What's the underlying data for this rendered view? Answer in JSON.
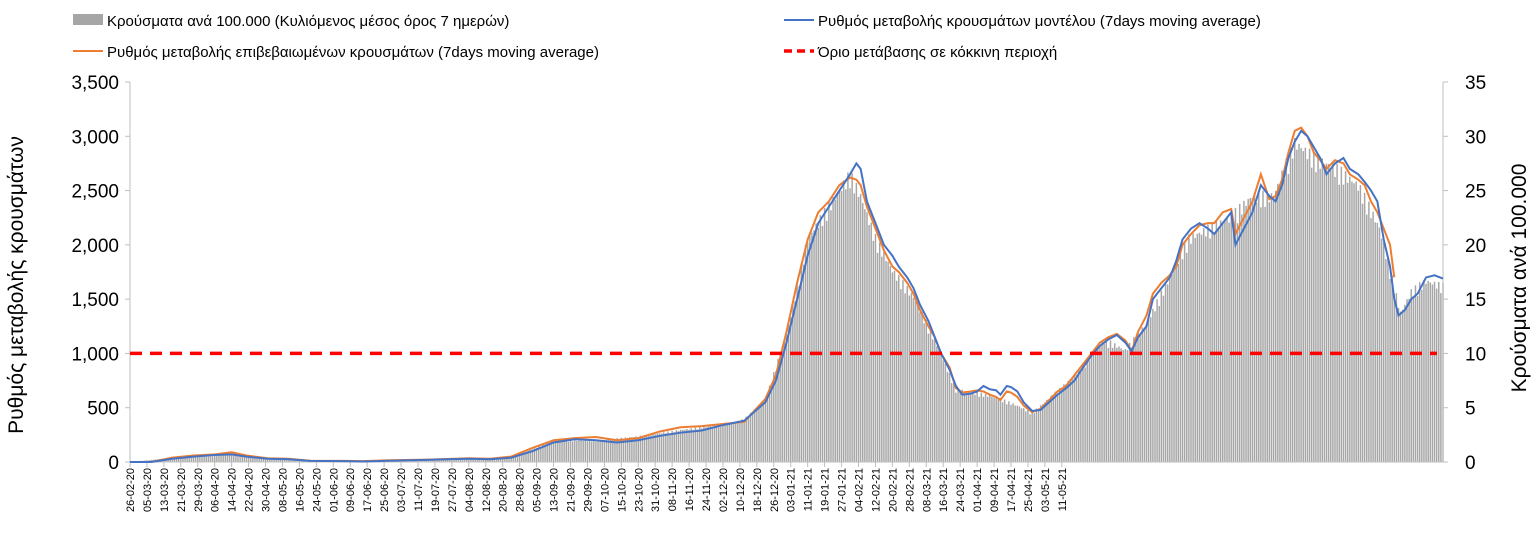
{
  "chart_data": {
    "type": "line",
    "legend": {
      "placement": "top",
      "items": [
        {
          "key": "cases",
          "label": "Κρούσματα ανά 100.000 (Κυλιόμενος μέσος όρος 7 ημερών)",
          "color": "#a6a6a6",
          "marker": "bar"
        },
        {
          "key": "model",
          "label": "Ρυθμός μεταβολής κρουσμάτων μοντέλου (7days moving average)",
          "color": "#4472c4",
          "marker": "line"
        },
        {
          "key": "confirmed",
          "label": "Ρυθμός μεταβολής επιβεβαιωμένων κρουσμάτων (7days moving average)",
          "color": "#ed7d31",
          "marker": "line"
        },
        {
          "key": "threshold",
          "label": "Όριο μετάβασης σε κόκκινη περιοχή",
          "color": "#ff0000",
          "marker": "dashed"
        }
      ]
    },
    "y_left": {
      "label": "Ρυθμός μεταβολής κρουσμάτων",
      "min": 0,
      "max": 3500,
      "ticks": [
        "0",
        "500",
        "1,000",
        "1,500",
        "2,000",
        "2,500",
        "3,000",
        "3,500"
      ]
    },
    "y_right": {
      "label": "Κρούσματα ανά 100.000",
      "min": 0,
      "max": 35,
      "ticks": [
        "0",
        "5",
        "10",
        "15",
        "20",
        "25",
        "30",
        "35"
      ]
    },
    "x_tick_labels": [
      "26-02-20",
      "05-03-20",
      "13-03-20",
      "21-03-20",
      "29-03-20",
      "06-04-20",
      "14-04-20",
      "22-04-20",
      "30-04-20",
      "08-05-20",
      "16-05-20",
      "24-05-20",
      "01-06-20",
      "09-06-20",
      "17-06-20",
      "25-06-20",
      "03-07-20",
      "11-07-20",
      "19-07-20",
      "27-07-20",
      "04-08-20",
      "12-08-20",
      "20-08-20",
      "28-08-20",
      "05-09-20",
      "13-09-20",
      "21-09-20",
      "29-09-20",
      "07-10-20",
      "15-10-20",
      "23-10-20",
      "31-10-20",
      "08-11-20",
      "16-11-20",
      "24-11-20",
      "02-12-20",
      "10-12-20",
      "18-12-20",
      "26-12-20",
      "03-01-21",
      "11-01-21",
      "19-01-21",
      "27-01-21",
      "04-02-21",
      "12-02-21",
      "20-02-21",
      "28-02-21",
      "08-03-21",
      "16-03-21",
      "24-03-21",
      "01-04-21",
      "09-04-21",
      "17-04-21",
      "25-04-21",
      "03-05-21",
      "11-05-21"
    ],
    "threshold": {
      "y_left": 1000,
      "y_right": 10
    },
    "grid": false,
    "series_points": {
      "note_units": "x is days since 26-02-20",
      "model": [
        [
          0,
          0
        ],
        [
          10,
          0
        ],
        [
          20,
          30
        ],
        [
          30,
          50
        ],
        [
          40,
          65
        ],
        [
          48,
          70
        ],
        [
          55,
          50
        ],
        [
          65,
          30
        ],
        [
          75,
          25
        ],
        [
          85,
          10
        ],
        [
          100,
          8
        ],
        [
          110,
          5
        ],
        [
          120,
          10
        ],
        [
          130,
          15
        ],
        [
          140,
          20
        ],
        [
          150,
          25
        ],
        [
          160,
          30
        ],
        [
          170,
          25
        ],
        [
          180,
          40
        ],
        [
          190,
          100
        ],
        [
          200,
          180
        ],
        [
          210,
          210
        ],
        [
          220,
          200
        ],
        [
          230,
          180
        ],
        [
          240,
          200
        ],
        [
          250,
          240
        ],
        [
          260,
          270
        ],
        [
          270,
          290
        ],
        [
          280,
          340
        ],
        [
          290,
          380
        ],
        [
          300,
          550
        ],
        [
          305,
          750
        ],
        [
          310,
          1100
        ],
        [
          315,
          1500
        ],
        [
          320,
          1900
        ],
        [
          325,
          2200
        ],
        [
          330,
          2350
        ],
        [
          335,
          2500
        ],
        [
          340,
          2650
        ],
        [
          343,
          2750
        ],
        [
          345,
          2700
        ],
        [
          348,
          2400
        ],
        [
          352,
          2200
        ],
        [
          356,
          2000
        ],
        [
          360,
          1900
        ],
        [
          363,
          1800
        ],
        [
          367,
          1700
        ],
        [
          370,
          1600
        ],
        [
          373,
          1450
        ],
        [
          377,
          1300
        ],
        [
          380,
          1150
        ],
        [
          383,
          1000
        ],
        [
          387,
          850
        ],
        [
          390,
          700
        ],
        [
          393,
          620
        ],
        [
          397,
          630
        ],
        [
          400,
          650
        ],
        [
          403,
          700
        ],
        [
          406,
          670
        ],
        [
          409,
          660
        ],
        [
          411,
          620
        ],
        [
          414,
          700
        ],
        [
          416,
          690
        ],
        [
          419,
          650
        ],
        [
          422,
          550
        ],
        [
          426,
          470
        ],
        [
          430,
          480
        ],
        [
          434,
          550
        ],
        [
          438,
          620
        ],
        [
          442,
          680
        ],
        [
          446,
          750
        ],
        [
          450,
          870
        ],
        [
          454,
          980
        ],
        [
          458,
          1070
        ],
        [
          462,
          1130
        ],
        [
          466,
          1170
        ],
        [
          470,
          1100
        ],
        [
          473,
          1020
        ],
        [
          476,
          1150
        ],
        [
          480,
          1250
        ],
        [
          483,
          1500
        ],
        [
          487,
          1600
        ],
        [
          491,
          1700
        ],
        [
          494,
          1850
        ],
        [
          497,
          2050
        ],
        [
          501,
          2150
        ],
        [
          505,
          2200
        ],
        [
          509,
          2150
        ],
        [
          512,
          2100
        ],
        [
          516,
          2200
        ],
        [
          520,
          2300
        ],
        [
          522,
          2000
        ],
        [
          526,
          2150
        ],
        [
          530,
          2300
        ],
        [
          534,
          2550
        ],
        [
          538,
          2450
        ],
        [
          541,
          2400
        ],
        [
          544,
          2550
        ],
        [
          547,
          2800
        ],
        [
          550,
          2950
        ],
        [
          553,
          3050
        ],
        [
          556,
          3000
        ],
        [
          559,
          2900
        ],
        [
          562,
          2800
        ],
        [
          565,
          2650
        ],
        [
          569,
          2750
        ],
        [
          573,
          2800
        ],
        [
          576,
          2700
        ],
        [
          580,
          2650
        ],
        [
          583,
          2580
        ],
        [
          586,
          2500
        ],
        [
          589,
          2400
        ],
        [
          592,
          2050
        ],
        [
          595,
          1800
        ],
        [
          597,
          1500
        ],
        [
          599,
          1350
        ],
        [
          602,
          1400
        ],
        [
          605,
          1500
        ],
        [
          608,
          1550
        ],
        [
          612,
          1700
        ],
        [
          616,
          1720
        ],
        [
          620,
          1690
        ]
      ],
      "confirmed": [
        [
          0,
          0
        ],
        [
          10,
          0
        ],
        [
          20,
          40
        ],
        [
          30,
          60
        ],
        [
          40,
          70
        ],
        [
          48,
          90
        ],
        [
          55,
          60
        ],
        [
          65,
          35
        ],
        [
          75,
          30
        ],
        [
          85,
          12
        ],
        [
          100,
          10
        ],
        [
          110,
          8
        ],
        [
          120,
          15
        ],
        [
          130,
          18
        ],
        [
          140,
          22
        ],
        [
          150,
          28
        ],
        [
          160,
          35
        ],
        [
          170,
          30
        ],
        [
          180,
          50
        ],
        [
          190,
          130
        ],
        [
          200,
          200
        ],
        [
          210,
          220
        ],
        [
          220,
          230
        ],
        [
          230,
          200
        ],
        [
          240,
          220
        ],
        [
          250,
          280
        ],
        [
          260,
          320
        ],
        [
          270,
          330
        ],
        [
          280,
          350
        ],
        [
          290,
          370
        ],
        [
          300,
          580
        ],
        [
          305,
          800
        ],
        [
          310,
          1200
        ],
        [
          315,
          1650
        ],
        [
          320,
          2050
        ],
        [
          325,
          2300
        ],
        [
          330,
          2400
        ],
        [
          335,
          2550
        ],
        [
          340,
          2620
        ],
        [
          343,
          2600
        ],
        [
          345,
          2550
        ],
        [
          348,
          2350
        ],
        [
          352,
          2150
        ],
        [
          356,
          1950
        ],
        [
          360,
          1800
        ],
        [
          363,
          1750
        ],
        [
          367,
          1650
        ],
        [
          370,
          1550
        ],
        [
          373,
          1400
        ],
        [
          377,
          1250
        ],
        [
          380,
          1150
        ],
        [
          383,
          1000
        ],
        [
          387,
          870
        ],
        [
          390,
          680
        ],
        [
          393,
          640
        ],
        [
          397,
          650
        ],
        [
          400,
          660
        ],
        [
          403,
          650
        ],
        [
          406,
          620
        ],
        [
          409,
          600
        ],
        [
          411,
          570
        ],
        [
          414,
          650
        ],
        [
          416,
          640
        ],
        [
          419,
          600
        ],
        [
          422,
          520
        ],
        [
          426,
          460
        ],
        [
          430,
          490
        ],
        [
          434,
          570
        ],
        [
          438,
          650
        ],
        [
          442,
          700
        ],
        [
          446,
          800
        ],
        [
          450,
          900
        ],
        [
          454,
          1000
        ],
        [
          458,
          1100
        ],
        [
          462,
          1150
        ],
        [
          466,
          1180
        ],
        [
          470,
          1120
        ],
        [
          473,
          1020
        ],
        [
          476,
          1200
        ],
        [
          480,
          1350
        ],
        [
          483,
          1550
        ],
        [
          487,
          1650
        ],
        [
          491,
          1720
        ],
        [
          494,
          1800
        ],
        [
          497,
          2000
        ],
        [
          501,
          2100
        ],
        [
          505,
          2180
        ],
        [
          509,
          2200
        ],
        [
          512,
          2200
        ],
        [
          516,
          2300
        ],
        [
          520,
          2330
        ],
        [
          522,
          2100
        ],
        [
          526,
          2250
        ],
        [
          530,
          2400
        ],
        [
          534,
          2650
        ],
        [
          538,
          2420
        ],
        [
          541,
          2450
        ],
        [
          544,
          2600
        ],
        [
          547,
          2850
        ],
        [
          550,
          3050
        ],
        [
          553,
          3080
        ],
        [
          556,
          3000
        ],
        [
          559,
          2850
        ],
        [
          562,
          2780
        ],
        [
          565,
          2700
        ],
        [
          569,
          2780
        ],
        [
          573,
          2750
        ],
        [
          576,
          2650
        ],
        [
          580,
          2600
        ],
        [
          583,
          2550
        ],
        [
          586,
          2400
        ],
        [
          589,
          2300
        ],
        [
          592,
          2150
        ],
        [
          595,
          2000
        ],
        [
          597,
          1700
        ]
      ],
      "cases_bars_right_axis": [
        [
          0,
          0
        ],
        [
          20,
          0.4
        ],
        [
          40,
          0.7
        ],
        [
          48,
          0.8
        ],
        [
          55,
          0.5
        ],
        [
          70,
          0.2
        ],
        [
          100,
          0.1
        ],
        [
          150,
          0.3
        ],
        [
          180,
          0.4
        ],
        [
          200,
          2
        ],
        [
          220,
          2
        ],
        [
          240,
          2.4
        ],
        [
          260,
          3
        ],
        [
          280,
          3.5
        ],
        [
          290,
          4
        ],
        [
          300,
          5.8
        ],
        [
          310,
          12
        ],
        [
          320,
          21
        ],
        [
          330,
          24
        ],
        [
          340,
          27
        ],
        [
          345,
          25
        ],
        [
          352,
          21
        ],
        [
          360,
          18
        ],
        [
          370,
          15.5
        ],
        [
          380,
          11.5
        ],
        [
          390,
          6.8
        ],
        [
          400,
          6.5
        ],
        [
          410,
          6
        ],
        [
          420,
          5.2
        ],
        [
          426,
          4.6
        ],
        [
          440,
          7
        ],
        [
          450,
          9
        ],
        [
          460,
          11.5
        ],
        [
          470,
          10.5
        ],
        [
          480,
          13
        ],
        [
          490,
          17
        ],
        [
          500,
          21
        ],
        [
          510,
          22
        ],
        [
          520,
          23
        ],
        [
          530,
          25
        ],
        [
          540,
          25
        ],
        [
          550,
          30
        ],
        [
          560,
          28.5
        ],
        [
          570,
          27.5
        ],
        [
          580,
          26
        ],
        [
          590,
          22
        ],
        [
          595,
          18
        ],
        [
          600,
          14
        ],
        [
          605,
          16
        ],
        [
          612,
          17
        ],
        [
          620,
          16.5
        ]
      ]
    }
  }
}
